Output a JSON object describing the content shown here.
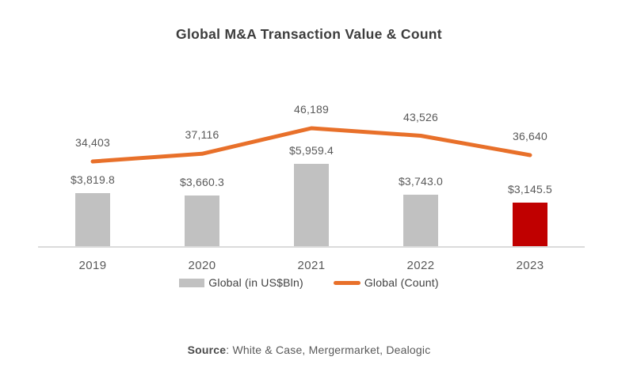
{
  "title": "Global M&A Transaction Value & Count",
  "source": {
    "label": "Source",
    "text": ": White & Case, Mergermarket, Dealogic"
  },
  "legend": [
    {
      "label": "Global (in US$Bln)",
      "swatch": "bar",
      "color": "#c1c1c1"
    },
    {
      "label": "Global (Count)",
      "swatch": "line",
      "color": "#e8702a"
    }
  ],
  "colors": {
    "bar_default": "#c1c1c1",
    "bar_highlight": "#c00000",
    "line": "#e8702a",
    "axis_line": "#dbdbdb",
    "title_text": "#3d3d3d",
    "label_text": "#595959"
  },
  "chart_data": {
    "type": "bar",
    "subtype": "combo-bar-line",
    "title": "Global M&A Transaction Value & Count",
    "categories": [
      "2019",
      "2020",
      "2021",
      "2022",
      "2023"
    ],
    "series": [
      {
        "name": "Global (in US$Bln)",
        "type": "bar",
        "values": [
          3819.8,
          3660.3,
          5959.4,
          3743.0,
          3145.5
        ],
        "labels": [
          "$3,819.8",
          "$3,660.3",
          "$5,959.4",
          "$3,743.0",
          "$3,145.5"
        ],
        "colors": [
          "#c1c1c1",
          "#c1c1c1",
          "#c1c1c1",
          "#c1c1c1",
          "#c00000"
        ]
      },
      {
        "name": "Global (Count)",
        "type": "line",
        "values": [
          34403,
          37116,
          46189,
          43526,
          36640
        ],
        "labels": [
          "34,403",
          "37,116",
          "46,189",
          "43,526",
          "36,640"
        ],
        "color": "#e8702a"
      }
    ],
    "xlabel": "",
    "ylabel": "",
    "axes_visible": false,
    "gridlines": false,
    "data_labels": true,
    "legend_position": "bottom",
    "bar_ylim": [
      0,
      6200
    ]
  }
}
